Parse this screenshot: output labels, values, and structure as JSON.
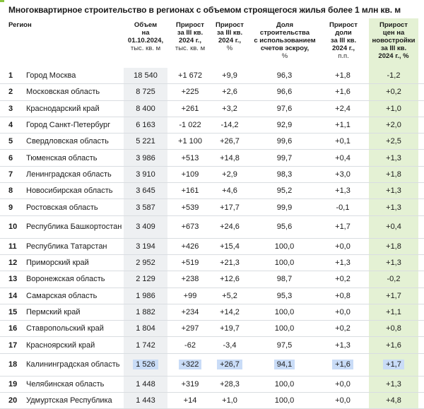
{
  "title": "Многоквартирное строительство в регионах с объемом строящегося жилья более 1 млн кв. м",
  "headers": {
    "region": "Регион",
    "volume": [
      "Объем",
      "на",
      "01.10.2024,"
    ],
    "volume_unit": "тыс. кв. м",
    "growth_abs": [
      "Прирост",
      "за III кв.",
      "2024 г.,"
    ],
    "growth_abs_unit": "тыс. кв. м",
    "growth_pct": [
      "Прирост",
      "за III кв.",
      "2024 г.,"
    ],
    "growth_pct_unit": "%",
    "escrow_share": [
      "Доля",
      "строительства",
      "с использованием",
      "счетов эскроу,"
    ],
    "escrow_share_unit": "%",
    "escrow_growth": [
      "Прирост",
      "доли",
      "за III кв.",
      "2024 г.,"
    ],
    "escrow_growth_unit": "п.п.",
    "price_growth": [
      "Прирост",
      "цен на",
      "новостройки",
      "за III кв.",
      "2024 г., %"
    ]
  },
  "colors": {
    "accent": "#8ac43f",
    "price_column_bg": "#e4f1d4",
    "volume_column_bg": "#eef0f2",
    "highlight": "#c9dcf7"
  },
  "rows": [
    {
      "num": "1",
      "region": "Город Москва",
      "volume": "18 540",
      "growth_abs": "+1 672",
      "growth_pct": "+9,9",
      "escrow_share": "96,3",
      "escrow_growth": "+1,8",
      "price_growth": "-1,2"
    },
    {
      "num": "2",
      "region": "Московская область",
      "volume": "8 725",
      "growth_abs": "+225",
      "growth_pct": "+2,6",
      "escrow_share": "96,6",
      "escrow_growth": "+1,6",
      "price_growth": "+0,2"
    },
    {
      "num": "3",
      "region": "Краснодарский край",
      "volume": "8 400",
      "growth_abs": "+261",
      "growth_pct": "+3,2",
      "escrow_share": "97,6",
      "escrow_growth": "+2,4",
      "price_growth": "+1,0"
    },
    {
      "num": "4",
      "region": "Город Санкт-Петербург",
      "volume": "6 163",
      "growth_abs": "-1 022",
      "growth_pct": "-14,2",
      "escrow_share": "92,9",
      "escrow_growth": "+1,1",
      "price_growth": "+2,0"
    },
    {
      "num": "5",
      "region": "Свердловская область",
      "volume": "5 221",
      "growth_abs": "+1 100",
      "growth_pct": "+26,7",
      "escrow_share": "99,6",
      "escrow_growth": "+0,1",
      "price_growth": "+2,5"
    },
    {
      "num": "6",
      "region": "Тюменская область",
      "volume": "3 986",
      "growth_abs": "+513",
      "growth_pct": "+14,8",
      "escrow_share": "99,7",
      "escrow_growth": "+0,4",
      "price_growth": "+1,3"
    },
    {
      "num": "7",
      "region": "Ленинградская область",
      "volume": "3 910",
      "growth_abs": "+109",
      "growth_pct": "+2,9",
      "escrow_share": "98,3",
      "escrow_growth": "+3,0",
      "price_growth": "+1,8"
    },
    {
      "num": "8",
      "region": "Новосибирская область",
      "volume": "3 645",
      "growth_abs": "+161",
      "growth_pct": "+4,6",
      "escrow_share": "95,2",
      "escrow_growth": "+1,3",
      "price_growth": "+1,3"
    },
    {
      "num": "9",
      "region": "Ростовская область",
      "volume": "3 587",
      "growth_abs": "+539",
      "growth_pct": "+17,7",
      "escrow_share": "99,9",
      "escrow_growth": "-0,1",
      "price_growth": "+1,3"
    },
    {
      "num": "10",
      "region": "Республика Башкортостан",
      "volume": "3 409",
      "growth_abs": "+673",
      "growth_pct": "+24,6",
      "escrow_share": "95,6",
      "escrow_growth": "+1,7",
      "price_growth": "+0,4"
    },
    {
      "num": "11",
      "region": "Республика Татарстан",
      "volume": "3 194",
      "growth_abs": "+426",
      "growth_pct": "+15,4",
      "escrow_share": "100,0",
      "escrow_growth": "+0,0",
      "price_growth": "+1,8"
    },
    {
      "num": "12",
      "region": "Приморский край",
      "volume": "2 952",
      "growth_abs": "+519",
      "growth_pct": "+21,3",
      "escrow_share": "100,0",
      "escrow_growth": "+1,3",
      "price_growth": "+1,3"
    },
    {
      "num": "13",
      "region": "Воронежская область",
      "volume": "2 129",
      "growth_abs": "+238",
      "growth_pct": "+12,6",
      "escrow_share": "98,7",
      "escrow_growth": "+0,2",
      "price_growth": "-0,2"
    },
    {
      "num": "14",
      "region": "Самарская область",
      "volume": "1 986",
      "growth_abs": "+99",
      "growth_pct": "+5,2",
      "escrow_share": "95,3",
      "escrow_growth": "+0,8",
      "price_growth": "+1,7"
    },
    {
      "num": "15",
      "region": "Пермский край",
      "volume": "1 882",
      "growth_abs": "+234",
      "growth_pct": "+14,2",
      "escrow_share": "100,0",
      "escrow_growth": "+0,0",
      "price_growth": "+1,1"
    },
    {
      "num": "16",
      "region": "Ставропольский край",
      "volume": "1 804",
      "growth_abs": "+297",
      "growth_pct": "+19,7",
      "escrow_share": "100,0",
      "escrow_growth": "+0,2",
      "price_growth": "+0,8"
    },
    {
      "num": "17",
      "region": "Красноярский край",
      "volume": "1 742",
      "growth_abs": "-62",
      "growth_pct": "-3,4",
      "escrow_share": "97,5",
      "escrow_growth": "+1,3",
      "price_growth": "+1,6"
    },
    {
      "num": "18",
      "region": "Калининградская область",
      "volume": "1 526",
      "growth_abs": "+322",
      "growth_pct": "+26,7",
      "escrow_share": "94,1",
      "escrow_growth": "+1,6",
      "price_growth": "+1,7",
      "highlighted": true
    },
    {
      "num": "19",
      "region": "Челябинская область",
      "volume": "1 448",
      "growth_abs": "+319",
      "growth_pct": "+28,3",
      "escrow_share": "100,0",
      "escrow_growth": "+0,0",
      "price_growth": "+1,3"
    },
    {
      "num": "20",
      "region": "Удмуртская Республика",
      "volume": "1 443",
      "growth_abs": "+14",
      "growth_pct": "+1,0",
      "escrow_share": "100,0",
      "escrow_growth": "+0,0",
      "price_growth": "+4,8"
    }
  ]
}
